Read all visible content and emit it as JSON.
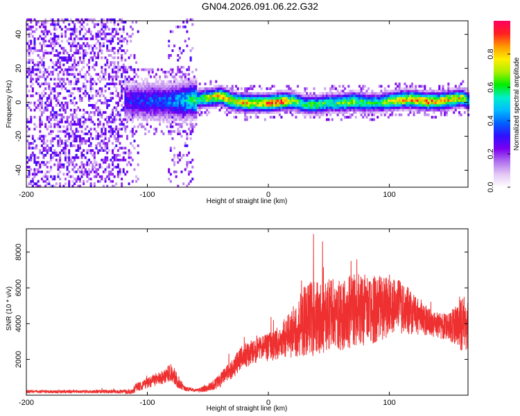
{
  "title": "GN04.2026.091.06.22.G32",
  "colors": {
    "snr_line": "#ee3030",
    "colormap": [
      "#ffffff",
      "#e4c8f4",
      "#b070ee",
      "#7a00ee",
      "#3010ff",
      "#0060ff",
      "#00bbff",
      "#00eecc",
      "#00ee00",
      "#aaee00",
      "#ffee00",
      "#ff9900",
      "#ff2020",
      "#ff0060"
    ]
  },
  "chart_data": [
    {
      "type": "heatmap",
      "name": "spectrogram",
      "xlabel": "Height of straight line (km)",
      "ylabel": "Frequency (Hz)",
      "xlim": [
        -200,
        165
      ],
      "ylim": [
        -50,
        48
      ],
      "x_ticks": [
        -200,
        -100,
        0,
        100
      ],
      "y_ticks": [
        -40,
        -20,
        0,
        20,
        40
      ],
      "colorbar": {
        "label": "Normalized spectral amplitude",
        "range": [
          0.0,
          1.0
        ],
        "ticks": [
          0.0,
          0.2,
          0.4,
          0.6,
          0.8
        ]
      },
      "ridge": {
        "x": [
          -120,
          -100,
          -80,
          -60,
          -50,
          -40,
          -30,
          -20,
          -10,
          0,
          10,
          20,
          30,
          40,
          50,
          60,
          70,
          80,
          90,
          100,
          110,
          120,
          130,
          140,
          150,
          160,
          165
        ],
        "freq": [
          0,
          0,
          0,
          1,
          2,
          3,
          0,
          -1,
          -1,
          -1,
          0,
          0,
          -2,
          -2,
          -1,
          -1,
          0,
          -1,
          -1,
          0,
          1,
          1,
          0,
          0,
          1,
          2,
          0
        ],
        "peak_amplitude": [
          0.3,
          0.35,
          0.4,
          0.6,
          0.75,
          0.85,
          0.8,
          0.85,
          0.8,
          0.9,
          0.95,
          0.7,
          0.6,
          0.65,
          0.6,
          0.65,
          0.7,
          0.6,
          0.6,
          0.75,
          0.8,
          0.85,
          0.9,
          0.85,
          0.8,
          0.75,
          0.5
        ]
      },
      "noise_regions": [
        {
          "x_range": [
            -200,
            -120
          ],
          "freq_range": [
            -50,
            48
          ],
          "amplitude": 0.25
        },
        {
          "x_range": [
            -120,
            -108
          ],
          "freq_range": [
            -50,
            48
          ],
          "amplitude": 0.1
        },
        {
          "x_range": [
            -83,
            -62
          ],
          "freq_range": [
            -50,
            48
          ],
          "amplitude": 0.1
        }
      ]
    },
    {
      "type": "line",
      "name": "snr",
      "xlabel": "Height of straight line (km)",
      "ylabel": "SNR (10 * v/v)",
      "xlim": [
        -200,
        165
      ],
      "ylim": [
        0,
        9300
      ],
      "x_ticks": [
        -200,
        -100,
        0,
        100
      ],
      "y_ticks": [
        2000,
        4000,
        6000,
        8000
      ],
      "envelope": {
        "x": [
          -200,
          -160,
          -130,
          -112,
          -110,
          -100,
          -90,
          -80,
          -75,
          -70,
          -60,
          -50,
          -40,
          -30,
          -20,
          -10,
          0,
          10,
          20,
          30,
          40,
          50,
          60,
          70,
          80,
          90,
          100,
          110,
          120,
          130,
          140,
          150,
          155,
          160,
          165
        ],
        "mean": [
          200,
          200,
          200,
          200,
          400,
          700,
          900,
          1300,
          800,
          400,
          250,
          400,
          800,
          1500,
          2200,
          2500,
          2700,
          3000,
          3500,
          4200,
          4300,
          4400,
          4500,
          4700,
          4800,
          4800,
          5000,
          4900,
          4600,
          4200,
          3900,
          3800,
          4000,
          3900,
          4000
        ],
        "spread": [
          80,
          80,
          100,
          120,
          250,
          300,
          350,
          500,
          400,
          150,
          100,
          200,
          400,
          600,
          700,
          700,
          800,
          1000,
          1400,
          2000,
          2200,
          2100,
          2000,
          2100,
          2000,
          1900,
          1700,
          1500,
          1200,
          900,
          700,
          800,
          1200,
          1500,
          1800
        ],
        "peak_max": 9300
      }
    }
  ]
}
